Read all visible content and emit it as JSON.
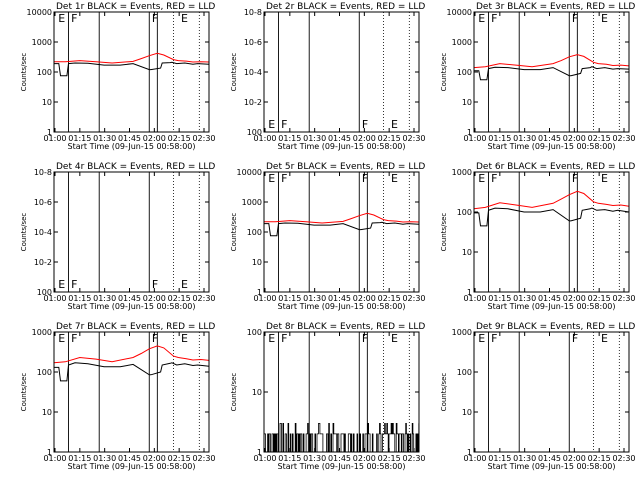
{
  "figure": {
    "x_tick_labels": [
      "01:00",
      "01:15",
      "01:30",
      "01:45",
      "02:00",
      "02:15",
      "02:30"
    ],
    "xlabel": "Start Time (09-Jun-15 00:58:00)",
    "ylabel": "Counts/sec",
    "colors": {
      "events": "#000000",
      "lld": "#ff0000",
      "axis": "#000000",
      "background": "#ffffff"
    }
  },
  "chart_data": [
    {
      "type": "line",
      "title": "Det 1r BLACK = Events, RED = LLD",
      "yscale": "log",
      "ylim": [
        1,
        10000
      ],
      "y_tick_labels": [
        "10000",
        "1000",
        "100",
        "10",
        "1"
      ],
      "xlim": [
        59,
        155
      ],
      "solid_markers_x": [
        68,
        87,
        118,
        123
      ],
      "dotted_markers_x": [
        133,
        149
      ],
      "flags": [
        {
          "label": "E",
          "x": 61,
          "pos": "top"
        },
        {
          "label": "F",
          "x": 69,
          "pos": "top"
        },
        {
          "label": "F",
          "x": 119,
          "pos": "top"
        },
        {
          "label": "E",
          "x": 137,
          "pos": "top"
        }
      ],
      "series": [
        {
          "name": "Events",
          "color": "#000000",
          "x": [
            59,
            62,
            63,
            67,
            68,
            72,
            80,
            90,
            100,
            108,
            118,
            119,
            125,
            126,
            131,
            132,
            135,
            140,
            145,
            148,
            155
          ],
          "y": [
            190,
            190,
            75,
            75,
            190,
            200,
            195,
            170,
            170,
            190,
            120,
            120,
            135,
            200,
            205,
            210,
            190,
            200,
            180,
            190,
            180
          ]
        },
        {
          "name": "LLD",
          "color": "#ff0000",
          "x": [
            59,
            66,
            75,
            85,
            95,
            108,
            113,
            118,
            123,
            127,
            133,
            136,
            141,
            145,
            150,
            155
          ],
          "y": [
            220,
            220,
            240,
            220,
            200,
            225,
            280,
            350,
            420,
            370,
            260,
            240,
            230,
            215,
            220,
            215
          ]
        }
      ]
    },
    {
      "type": "line",
      "title": "Det 2r BLACK = Events, RED = LLD",
      "yscale": "log",
      "ylim": [
        1,
        100000000
      ],
      "y_tick_labels": [
        "10-8",
        "10-6",
        "10-4",
        "10-2",
        "100"
      ],
      "xlim": [
        59,
        155
      ],
      "solid_markers_x": [
        68,
        87,
        118
      ],
      "dotted_markers_x": [
        133,
        149
      ],
      "flags": [
        {
          "label": "E",
          "x": 61,
          "pos": "bottom"
        },
        {
          "label": "F",
          "x": 69,
          "pos": "bottom"
        },
        {
          "label": "F",
          "x": 119,
          "pos": "bottom"
        },
        {
          "label": "E",
          "x": 137,
          "pos": "bottom"
        }
      ],
      "series": []
    },
    {
      "type": "line",
      "title": "Det 3r BLACK = Events, RED = LLD",
      "yscale": "log",
      "ylim": [
        1,
        10000
      ],
      "y_tick_labels": [
        "10000",
        "1000",
        "100",
        "10",
        "1"
      ],
      "xlim": [
        59,
        155
      ],
      "solid_markers_x": [
        68,
        87,
        118,
        123
      ],
      "dotted_markers_x": [
        133,
        149
      ],
      "flags": [
        {
          "label": "E",
          "x": 61,
          "pos": "top"
        },
        {
          "label": "F",
          "x": 69,
          "pos": "top"
        },
        {
          "label": "F",
          "x": 119,
          "pos": "top"
        },
        {
          "label": "E",
          "x": 137,
          "pos": "top"
        }
      ],
      "series": [
        {
          "name": "Events",
          "color": "#000000",
          "x": [
            59,
            62,
            63,
            67,
            68,
            72,
            80,
            90,
            100,
            108,
            118,
            119,
            125,
            126,
            131,
            132,
            135,
            140,
            145,
            148,
            155
          ],
          "y": [
            110,
            110,
            55,
            55,
            130,
            145,
            140,
            120,
            120,
            140,
            75,
            75,
            90,
            130,
            140,
            150,
            130,
            140,
            125,
            130,
            125
          ]
        },
        {
          "name": "LLD",
          "color": "#ff0000",
          "x": [
            59,
            66,
            75,
            85,
            95,
            108,
            113,
            118,
            123,
            127,
            133,
            136,
            141,
            145,
            150,
            155
          ],
          "y": [
            140,
            150,
            190,
            170,
            150,
            190,
            240,
            320,
            380,
            330,
            210,
            190,
            180,
            165,
            170,
            160
          ]
        }
      ]
    },
    {
      "type": "line",
      "title": "Det 4r BLACK = Events, RED = LLD",
      "yscale": "log",
      "ylim": [
        1,
        100000000
      ],
      "y_tick_labels": [
        "10-8",
        "10-6",
        "10-4",
        "10-2",
        "100"
      ],
      "xlim": [
        59,
        155
      ],
      "solid_markers_x": [
        68,
        87,
        118
      ],
      "dotted_markers_x": [
        133,
        149
      ],
      "flags": [
        {
          "label": "E",
          "x": 61,
          "pos": "bottom"
        },
        {
          "label": "F",
          "x": 69,
          "pos": "bottom"
        },
        {
          "label": "F",
          "x": 119,
          "pos": "bottom"
        },
        {
          "label": "E",
          "x": 137,
          "pos": "bottom"
        }
      ],
      "series": []
    },
    {
      "type": "line",
      "title": "Det 5r BLACK = Events, RED = LLD",
      "yscale": "log",
      "ylim": [
        1,
        10000
      ],
      "y_tick_labels": [
        "10000",
        "1000",
        "100",
        "10",
        "1"
      ],
      "xlim": [
        59,
        155
      ],
      "solid_markers_x": [
        68,
        87,
        118,
        123
      ],
      "dotted_markers_x": [
        133,
        149
      ],
      "flags": [
        {
          "label": "E",
          "x": 61,
          "pos": "top"
        },
        {
          "label": "F",
          "x": 69,
          "pos": "top"
        },
        {
          "label": "F",
          "x": 119,
          "pos": "top"
        },
        {
          "label": "E",
          "x": 137,
          "pos": "top"
        }
      ],
      "series": [
        {
          "name": "Events",
          "color": "#000000",
          "x": [
            59,
            62,
            63,
            67,
            68,
            72,
            80,
            90,
            100,
            108,
            118,
            119,
            125,
            126,
            131,
            132,
            135,
            140,
            145,
            148,
            155
          ],
          "y": [
            190,
            190,
            75,
            75,
            190,
            200,
            195,
            170,
            170,
            190,
            120,
            120,
            135,
            200,
            205,
            210,
            190,
            200,
            180,
            190,
            180
          ]
        },
        {
          "name": "LLD",
          "color": "#ff0000",
          "x": [
            59,
            66,
            75,
            85,
            95,
            108,
            113,
            118,
            123,
            127,
            133,
            136,
            141,
            145,
            150,
            155
          ],
          "y": [
            220,
            220,
            240,
            220,
            200,
            225,
            280,
            350,
            420,
            370,
            260,
            240,
            230,
            215,
            220,
            215
          ]
        }
      ]
    },
    {
      "type": "line",
      "title": "Det 6r BLACK = Events, RED = LLD",
      "yscale": "log",
      "ylim": [
        1,
        1000
      ],
      "y_tick_labels": [
        "1000",
        "100",
        "10",
        "1"
      ],
      "xlim": [
        59,
        155
      ],
      "solid_markers_x": [
        68,
        87,
        118,
        123
      ],
      "dotted_markers_x": [
        133,
        149
      ],
      "flags": [
        {
          "label": "E",
          "x": 61,
          "pos": "top"
        },
        {
          "label": "F",
          "x": 69,
          "pos": "top"
        },
        {
          "label": "F",
          "x": 119,
          "pos": "top"
        },
        {
          "label": "E",
          "x": 137,
          "pos": "top"
        }
      ],
      "series": [
        {
          "name": "Events",
          "color": "#000000",
          "x": [
            59,
            62,
            63,
            67,
            68,
            72,
            80,
            90,
            100,
            108,
            118,
            119,
            125,
            126,
            131,
            132,
            135,
            140,
            145,
            148,
            155
          ],
          "y": [
            95,
            95,
            45,
            45,
            110,
            125,
            120,
            100,
            100,
            115,
            60,
            60,
            70,
            110,
            120,
            125,
            110,
            115,
            105,
            110,
            100
          ]
        },
        {
          "name": "LLD",
          "color": "#ff0000",
          "x": [
            59,
            66,
            75,
            85,
            95,
            108,
            113,
            118,
            123,
            127,
            133,
            136,
            141,
            145,
            150,
            155
          ],
          "y": [
            120,
            130,
            170,
            150,
            130,
            165,
            210,
            270,
            330,
            290,
            180,
            165,
            155,
            145,
            150,
            140
          ]
        }
      ]
    },
    {
      "type": "line",
      "title": "Det 7r BLACK = Events, RED = LLD",
      "yscale": "log",
      "ylim": [
        1,
        1000
      ],
      "y_tick_labels": [
        "1000",
        "100",
        "10",
        "1"
      ],
      "xlim": [
        59,
        155
      ],
      "solid_markers_x": [
        68,
        87,
        118,
        123
      ],
      "dotted_markers_x": [
        133,
        149
      ],
      "flags": [
        {
          "label": "E",
          "x": 61,
          "pos": "top"
        },
        {
          "label": "F",
          "x": 69,
          "pos": "top"
        },
        {
          "label": "F",
          "x": 119,
          "pos": "top"
        },
        {
          "label": "E",
          "x": 137,
          "pos": "top"
        }
      ],
      "series": [
        {
          "name": "Events",
          "color": "#000000",
          "x": [
            59,
            62,
            63,
            67,
            68,
            72,
            80,
            90,
            100,
            108,
            118,
            119,
            125,
            126,
            131,
            132,
            135,
            140,
            145,
            148,
            155
          ],
          "y": [
            130,
            130,
            60,
            60,
            150,
            170,
            160,
            135,
            135,
            155,
            85,
            85,
            100,
            150,
            165,
            170,
            150,
            160,
            145,
            150,
            140
          ]
        },
        {
          "name": "LLD",
          "color": "#ff0000",
          "x": [
            59,
            66,
            75,
            85,
            95,
            108,
            113,
            118,
            123,
            127,
            133,
            136,
            141,
            145,
            150,
            155
          ],
          "y": [
            170,
            180,
            230,
            210,
            180,
            230,
            290,
            380,
            450,
            400,
            250,
            230,
            215,
            200,
            205,
            195
          ]
        }
      ]
    },
    {
      "type": "line",
      "title": "Det 8r BLACK = Events, RED = LLD",
      "yscale": "log",
      "ylim": [
        1,
        100
      ],
      "y_tick_labels": [
        "100",
        "10",
        "1"
      ],
      "xlim": [
        59,
        155
      ],
      "solid_markers_x": [
        68,
        87,
        118,
        123
      ],
      "dotted_markers_x": [
        133,
        149
      ],
      "flags": [
        {
          "label": "E",
          "x": 61,
          "pos": "top"
        },
        {
          "label": "F",
          "x": 69,
          "pos": "top"
        },
        {
          "label": "F",
          "x": 119,
          "pos": "top"
        },
        {
          "label": "E",
          "x": 137,
          "pos": "top"
        }
      ],
      "series": [
        {
          "name": "Events",
          "color": "#000000",
          "noise": {
            "levels": [
              1,
              2,
              3
            ],
            "weights": [
              0.45,
              0.45,
              0.1
            ]
          },
          "x": [],
          "y": []
        }
      ]
    },
    {
      "type": "line",
      "title": "Det 9r BLACK = Events, RED = LLD",
      "yscale": "log",
      "ylim": [
        1,
        1000
      ],
      "y_tick_labels": [
        "1000",
        "100",
        "10",
        "1"
      ],
      "xlim": [
        59,
        155
      ],
      "solid_markers_x": [
        68,
        87,
        118
      ],
      "dotted_markers_x": [
        133,
        149
      ],
      "flags": [
        {
          "label": "E",
          "x": 61,
          "pos": "top"
        },
        {
          "label": "F",
          "x": 69,
          "pos": "top"
        },
        {
          "label": "F",
          "x": 119,
          "pos": "top"
        },
        {
          "label": "E",
          "x": 137,
          "pos": "top"
        }
      ],
      "series": []
    }
  ]
}
